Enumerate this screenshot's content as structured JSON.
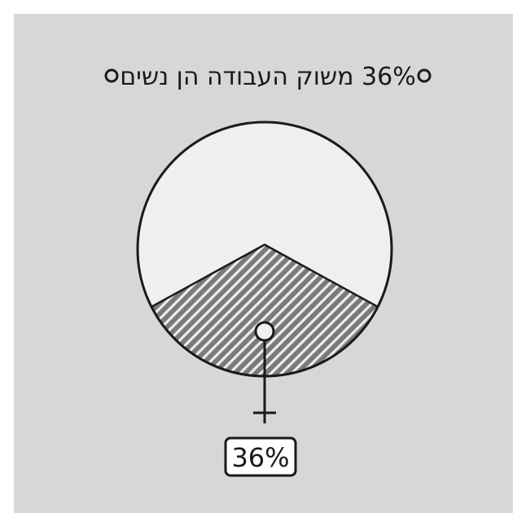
{
  "chart_data": {
    "type": "pie",
    "title": "36% משוק העבודה הן נשים",
    "slices": [
      {
        "label": "",
        "value": 36,
        "display": "36%",
        "pattern": "hatched"
      },
      {
        "label": "",
        "value": 64,
        "pattern": "plain"
      }
    ],
    "legend": "none",
    "grid": false
  },
  "colors": {
    "panel": "#d7d7d7",
    "circle_fill": "#efefef",
    "hatch_fill": "#7a7a7a",
    "ink": "#1a1a1a"
  },
  "icons": {
    "title_bullet": "circle-outline-icon",
    "female_symbol": "female-symbol-icon"
  }
}
